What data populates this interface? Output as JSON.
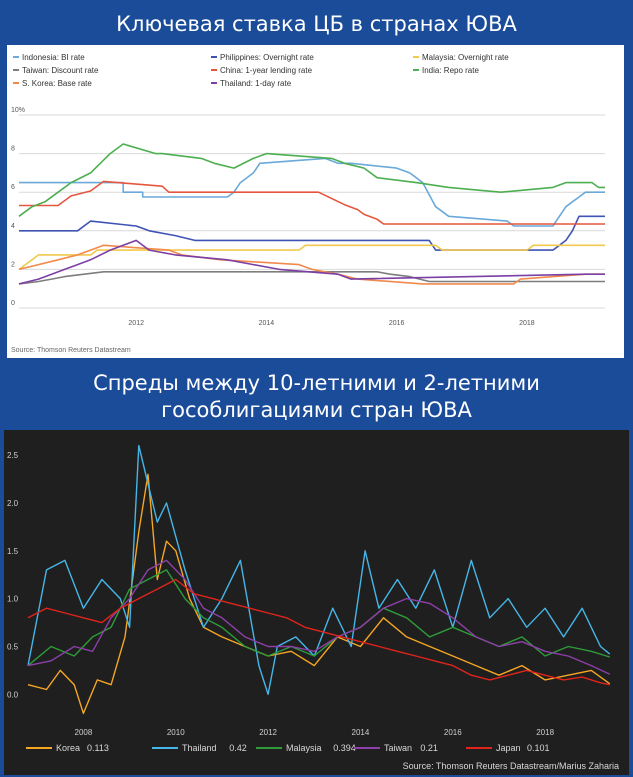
{
  "titles": {
    "top": "Ключевая ставка ЦБ в странах ЮВА",
    "bottom_line1": "Спреды между 10-летними и 2-летними",
    "bottom_line2": "гособлигациями стран ЮВА"
  },
  "chart_data": [
    {
      "type": "line",
      "title": "",
      "ylim": [
        0,
        10
      ],
      "xlim": [
        2010.2,
        2019.2
      ],
      "y_ticks": [
        "10%",
        "8",
        "6",
        "4",
        "2",
        "0"
      ],
      "x_ticks": [
        "2012",
        "2014",
        "2016",
        "2018"
      ],
      "grid": true,
      "legend_position": "top",
      "source": "Source: Thomson Reuters Datastream",
      "series": [
        {
          "name": "Indonesia: BI rate",
          "color": "#6aa9d9",
          "x": [
            2010.2,
            2011.8,
            2011.8,
            2012.1,
            2012.1,
            2013.4,
            2013.5,
            2013.6,
            2013.8,
            2013.9,
            2014.9,
            2015.1,
            2015.3,
            2016.0,
            2016.2,
            2016.3,
            2016.4,
            2016.6,
            2016.8,
            2017.7,
            2017.8,
            2018.4,
            2018.5,
            2018.6,
            2018.7,
            2018.8,
            2018.9,
            2019.2
          ],
          "y": [
            6.5,
            6.5,
            6.0,
            6.0,
            5.75,
            5.75,
            6.0,
            6.5,
            7.0,
            7.5,
            7.75,
            7.5,
            7.5,
            7.25,
            7.0,
            6.75,
            6.5,
            5.25,
            4.75,
            4.5,
            4.25,
            4.25,
            4.75,
            5.25,
            5.5,
            5.75,
            6.0,
            6.0
          ]
        },
        {
          "name": "Philippines: Overnight rate",
          "color": "#3f53b5",
          "x": [
            2010.2,
            2011.1,
            2011.3,
            2012.0,
            2012.2,
            2012.6,
            2012.9,
            2016.5,
            2016.6,
            2018.4,
            2018.5,
            2018.6,
            2018.7,
            2018.8,
            2019.2
          ],
          "y": [
            4.0,
            4.0,
            4.5,
            4.25,
            4.0,
            3.75,
            3.5,
            3.5,
            3.0,
            3.0,
            3.25,
            3.5,
            4.0,
            4.75,
            4.75
          ]
        },
        {
          "name": "Malaysia: Overnight rate",
          "color": "#f2c94c",
          "x": [
            2010.2,
            2010.3,
            2010.4,
            2010.5,
            2011.3,
            2011.4,
            2014.5,
            2014.6,
            2016.6,
            2016.7,
            2018.0,
            2018.1,
            2019.2
          ],
          "y": [
            2.0,
            2.25,
            2.5,
            2.75,
            2.75,
            3.0,
            3.0,
            3.25,
            3.25,
            3.0,
            3.0,
            3.25,
            3.25
          ]
        },
        {
          "name": "Taiwan: Discount rate",
          "color": "#7d7d7d",
          "x": [
            2010.2,
            2010.5,
            2010.7,
            2010.9,
            2011.2,
            2011.5,
            2015.7,
            2015.9,
            2016.2,
            2016.5,
            2019.2
          ],
          "y": [
            1.25,
            1.375,
            1.5,
            1.625,
            1.75,
            1.875,
            1.875,
            1.75,
            1.625,
            1.375,
            1.375
          ]
        },
        {
          "name": "China: 1-year lending rate",
          "color": "#e6563f",
          "x": [
            2010.2,
            2010.8,
            2011.0,
            2011.3,
            2011.5,
            2012.4,
            2012.5,
            2014.8,
            2015.2,
            2015.4,
            2015.5,
            2015.7,
            2015.8,
            2019.2
          ],
          "y": [
            5.31,
            5.31,
            5.81,
            6.06,
            6.56,
            6.31,
            6.0,
            6.0,
            5.35,
            5.1,
            4.85,
            4.6,
            4.35,
            4.35
          ]
        },
        {
          "name": "India: Repo rate",
          "color": "#4caf50",
          "x": [
            2010.2,
            2010.4,
            2010.6,
            2010.8,
            2011.0,
            2011.3,
            2011.6,
            2011.8,
            2012.3,
            2012.4,
            2013.0,
            2013.2,
            2013.5,
            2013.8,
            2014.0,
            2015.0,
            2015.2,
            2015.5,
            2015.7,
            2016.3,
            2016.8,
            2017.6,
            2018.4,
            2018.6,
            2019.0,
            2019.1,
            2019.2
          ],
          "y": [
            4.75,
            5.25,
            5.5,
            6.0,
            6.5,
            7.0,
            8.0,
            8.5,
            8.0,
            8.0,
            7.75,
            7.5,
            7.25,
            7.75,
            8.0,
            7.75,
            7.5,
            7.25,
            6.75,
            6.5,
            6.25,
            6.0,
            6.25,
            6.5,
            6.5,
            6.25,
            6.25
          ]
        },
        {
          "name": "S. Korea: Base rate",
          "color": "#f28a4b",
          "x": [
            2010.2,
            2010.5,
            2010.8,
            2011.1,
            2011.3,
            2011.5,
            2012.5,
            2012.7,
            2013.3,
            2014.5,
            2014.7,
            2015.1,
            2015.4,
            2016.4,
            2017.8,
            2017.9,
            2018.9,
            2019.2
          ],
          "y": [
            2.0,
            2.25,
            2.5,
            2.75,
            3.0,
            3.25,
            3.0,
            2.75,
            2.5,
            2.25,
            2.0,
            1.75,
            1.5,
            1.25,
            1.25,
            1.5,
            1.75,
            1.75
          ]
        },
        {
          "name": "Thailand: 1-day rate",
          "color": "#7b3fa5",
          "x": [
            2010.2,
            2010.5,
            2010.7,
            2010.9,
            2011.1,
            2011.3,
            2011.6,
            2011.8,
            2012.0,
            2012.2,
            2012.6,
            2013.4,
            2013.8,
            2014.2,
            2015.1,
            2015.3,
            2018.9,
            2019.2
          ],
          "y": [
            1.25,
            1.5,
            1.75,
            2.0,
            2.25,
            2.5,
            3.0,
            3.25,
            3.5,
            3.0,
            2.75,
            2.5,
            2.25,
            2.0,
            1.75,
            1.5,
            1.75,
            1.75
          ]
        }
      ]
    },
    {
      "type": "line",
      "title": "",
      "ylim": [
        -0.3,
        2.7
      ],
      "xlim": [
        2006.8,
        2019.6
      ],
      "y_ticks": [
        "2.5",
        "2.0",
        "1.5",
        "1.0",
        "0.5",
        "0.0"
      ],
      "x_ticks": [
        "2008",
        "2010",
        "2012",
        "2014",
        "2016",
        "2018"
      ],
      "grid": false,
      "legend_position": "bottom",
      "source": "Source: Thomson Reuters Datastream/Marius Zaharia",
      "series": [
        {
          "name": "Korea",
          "legend_value": "0.113",
          "color": "#f5a623",
          "x": [
            2006.8,
            2007.2,
            2007.5,
            2007.8,
            2008.0,
            2008.3,
            2008.6,
            2008.9,
            2009.2,
            2009.4,
            2009.6,
            2009.8,
            2010.0,
            2010.3,
            2010.6,
            2011.0,
            2011.5,
            2012.0,
            2012.5,
            2013.0,
            2013.5,
            2014.0,
            2014.5,
            2015.0,
            2015.5,
            2016.0,
            2016.5,
            2017.0,
            2017.5,
            2018.0,
            2018.5,
            2019.0,
            2019.4
          ],
          "y": [
            0.1,
            0.05,
            0.25,
            0.1,
            -0.2,
            0.15,
            0.1,
            0.6,
            1.7,
            2.3,
            1.2,
            1.6,
            1.5,
            1.0,
            0.7,
            0.6,
            0.5,
            0.4,
            0.45,
            0.3,
            0.6,
            0.5,
            0.8,
            0.6,
            0.5,
            0.4,
            0.3,
            0.2,
            0.3,
            0.15,
            0.2,
            0.25,
            0.11
          ]
        },
        {
          "name": "Thailand",
          "legend_value": "0.42",
          "color": "#45b6e8",
          "x": [
            2006.8,
            2007.2,
            2007.6,
            2008.0,
            2008.4,
            2008.8,
            2009.0,
            2009.2,
            2009.4,
            2009.6,
            2009.8,
            2010.2,
            2010.6,
            2011.0,
            2011.4,
            2011.8,
            2012.0,
            2012.2,
            2012.6,
            2013.0,
            2013.4,
            2013.8,
            2014.1,
            2014.4,
            2014.8,
            2015.2,
            2015.6,
            2016.0,
            2016.4,
            2016.8,
            2017.2,
            2017.6,
            2018.0,
            2018.4,
            2018.8,
            2019.2,
            2019.4
          ],
          "y": [
            0.3,
            1.3,
            1.4,
            0.9,
            1.2,
            1.0,
            0.7,
            2.6,
            2.2,
            1.8,
            2.0,
            1.3,
            0.7,
            1.0,
            1.4,
            0.3,
            0.0,
            0.5,
            0.6,
            0.4,
            0.9,
            0.5,
            1.5,
            0.9,
            1.2,
            0.9,
            1.3,
            0.7,
            1.4,
            0.8,
            1.0,
            0.7,
            0.9,
            0.6,
            0.9,
            0.5,
            0.42
          ]
        },
        {
          "name": "Malaysia",
          "legend_value": "0.394",
          "color": "#2e9c39",
          "x": [
            2006.8,
            2007.3,
            2007.8,
            2008.2,
            2008.6,
            2009.0,
            2009.4,
            2009.8,
            2010.2,
            2010.6,
            2011.0,
            2011.5,
            2012.0,
            2012.5,
            2013.0,
            2013.5,
            2014.0,
            2014.5,
            2015.0,
            2015.5,
            2016.0,
            2016.5,
            2017.0,
            2017.5,
            2018.0,
            2018.5,
            2019.0,
            2019.4
          ],
          "y": [
            0.3,
            0.5,
            0.4,
            0.6,
            0.7,
            1.1,
            1.2,
            1.3,
            1.0,
            0.8,
            0.7,
            0.5,
            0.4,
            0.5,
            0.4,
            0.6,
            0.7,
            0.9,
            0.8,
            0.6,
            0.7,
            0.6,
            0.5,
            0.6,
            0.4,
            0.5,
            0.45,
            0.39
          ]
        },
        {
          "name": "Taiwan",
          "legend_value": "0.21",
          "color": "#8e3fa8",
          "x": [
            2006.8,
            2007.3,
            2007.8,
            2008.2,
            2008.6,
            2009.0,
            2009.4,
            2009.8,
            2010.2,
            2010.6,
            2011.0,
            2011.5,
            2012.0,
            2012.5,
            2013.0,
            2013.5,
            2014.0,
            2014.5,
            2015.0,
            2015.5,
            2016.0,
            2016.5,
            2017.0,
            2017.5,
            2018.0,
            2018.5,
            2019.0,
            2019.4
          ],
          "y": [
            0.3,
            0.35,
            0.5,
            0.45,
            0.8,
            1.0,
            1.3,
            1.4,
            1.2,
            0.9,
            0.8,
            0.6,
            0.5,
            0.5,
            0.45,
            0.6,
            0.7,
            0.9,
            1.0,
            0.95,
            0.8,
            0.6,
            0.5,
            0.55,
            0.45,
            0.4,
            0.3,
            0.21
          ]
        },
        {
          "name": "Japan",
          "legend_value": "0.101",
          "color": "#e0241b",
          "x": [
            2006.8,
            2007.2,
            2007.6,
            2008.0,
            2008.4,
            2008.8,
            2009.2,
            2009.6,
            2010.0,
            2010.4,
            2010.8,
            2011.2,
            2011.6,
            2012.0,
            2012.4,
            2012.8,
            2013.2,
            2013.6,
            2014.0,
            2014.4,
            2014.8,
            2015.2,
            2015.6,
            2016.0,
            2016.4,
            2016.8,
            2017.2,
            2017.6,
            2018.0,
            2018.4,
            2018.8,
            2019.2,
            2019.4
          ],
          "y": [
            0.8,
            0.9,
            0.85,
            0.8,
            0.75,
            0.9,
            1.0,
            1.1,
            1.2,
            1.05,
            1.0,
            0.95,
            0.9,
            0.85,
            0.8,
            0.7,
            0.65,
            0.6,
            0.55,
            0.5,
            0.45,
            0.4,
            0.35,
            0.3,
            0.2,
            0.15,
            0.2,
            0.25,
            0.2,
            0.15,
            0.18,
            0.12,
            0.1
          ]
        }
      ]
    }
  ]
}
